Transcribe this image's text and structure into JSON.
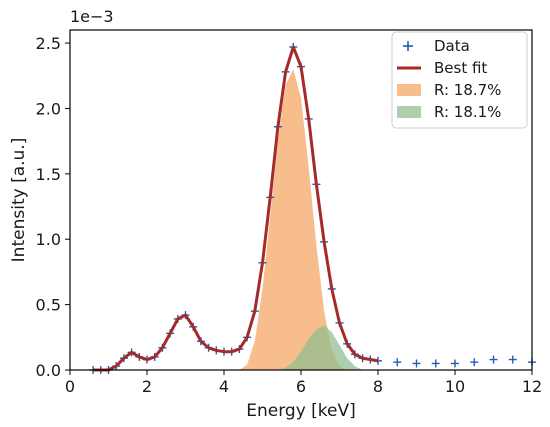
{
  "chart_data": {
    "type": "line",
    "xlabel": "Energy [keV]",
    "ylabel": "Intensity [a.u.]",
    "y_multiplier": "1e−3",
    "xlim": [
      0,
      12
    ],
    "ylim": [
      0,
      2.6
    ],
    "x_ticks": [
      "0",
      "2",
      "4",
      "6",
      "8",
      "10",
      "12"
    ],
    "y_ticks": [
      "0.0",
      "0.5",
      "1.0",
      "1.5",
      "2.0",
      "2.5"
    ],
    "x_tick_values": [
      0,
      2,
      4,
      6,
      8,
      10,
      12
    ],
    "y_tick_values": [
      0,
      0.5,
      1.0,
      1.5,
      2.0,
      2.5
    ],
    "grid": false,
    "legend_position": "top-right",
    "series": [
      {
        "name": "Data",
        "kind": "markers",
        "marker": "+",
        "color": "#1f5fb4",
        "x": [
          0.6,
          0.8,
          1.0,
          1.2,
          1.4,
          1.6,
          1.8,
          2.0,
          2.2,
          2.4,
          2.6,
          2.8,
          3.0,
          3.2,
          3.4,
          3.6,
          3.8,
          4.0,
          4.2,
          4.4,
          4.6,
          4.8,
          5.0,
          5.2,
          5.4,
          5.6,
          5.8,
          6.0,
          6.2,
          6.4,
          6.6,
          6.8,
          7.0,
          7.2,
          7.4,
          7.6,
          7.8,
          8.0,
          8.5,
          9.0,
          9.5,
          10.0,
          10.5,
          11.0,
          11.5,
          12.0
        ],
        "y": [
          0.0,
          0.0,
          0.0,
          0.03,
          0.09,
          0.135,
          0.1,
          0.08,
          0.1,
          0.17,
          0.28,
          0.39,
          0.42,
          0.33,
          0.22,
          0.17,
          0.15,
          0.14,
          0.14,
          0.16,
          0.25,
          0.45,
          0.82,
          1.32,
          1.86,
          2.28,
          2.47,
          2.32,
          1.92,
          1.42,
          0.98,
          0.62,
          0.36,
          0.2,
          0.12,
          0.09,
          0.08,
          0.07,
          0.06,
          0.05,
          0.05,
          0.05,
          0.06,
          0.08,
          0.08,
          0.06
        ]
      },
      {
        "name": "Best fit",
        "kind": "line",
        "color": "#a52a2a",
        "x": [
          0.6,
          0.8,
          1.0,
          1.2,
          1.4,
          1.6,
          1.8,
          2.0,
          2.2,
          2.4,
          2.6,
          2.8,
          3.0,
          3.2,
          3.4,
          3.6,
          3.8,
          4.0,
          4.2,
          4.4,
          4.6,
          4.8,
          5.0,
          5.2,
          5.4,
          5.6,
          5.8,
          6.0,
          6.2,
          6.4,
          6.6,
          6.8,
          7.0,
          7.2,
          7.4,
          7.6,
          7.8,
          8.0
        ],
        "y": [
          0.0,
          0.0,
          0.0,
          0.03,
          0.09,
          0.135,
          0.1,
          0.08,
          0.1,
          0.17,
          0.28,
          0.39,
          0.42,
          0.33,
          0.22,
          0.17,
          0.15,
          0.14,
          0.14,
          0.16,
          0.25,
          0.45,
          0.82,
          1.32,
          1.86,
          2.28,
          2.47,
          2.32,
          1.92,
          1.42,
          0.98,
          0.62,
          0.36,
          0.2,
          0.12,
          0.09,
          0.08,
          0.07
        ]
      },
      {
        "name": "R: 18.7%",
        "kind": "area",
        "color": "#f4a460",
        "x": [
          4.4,
          4.6,
          4.8,
          5.0,
          5.2,
          5.4,
          5.6,
          5.8,
          6.0,
          6.2,
          6.4,
          6.6,
          6.8,
          7.0,
          7.2
        ],
        "y": [
          0.0,
          0.04,
          0.22,
          0.62,
          1.18,
          1.75,
          2.18,
          2.3,
          2.08,
          1.55,
          0.95,
          0.45,
          0.15,
          0.03,
          0.0
        ]
      },
      {
        "name": "R: 18.1%",
        "kind": "area",
        "color": "#8fbc8f",
        "x": [
          5.4,
          5.6,
          5.8,
          6.0,
          6.2,
          6.4,
          6.6,
          6.8,
          7.0,
          7.2,
          7.4,
          7.6
        ],
        "y": [
          0.0,
          0.02,
          0.06,
          0.14,
          0.24,
          0.31,
          0.34,
          0.29,
          0.19,
          0.09,
          0.03,
          0.0
        ]
      }
    ]
  }
}
